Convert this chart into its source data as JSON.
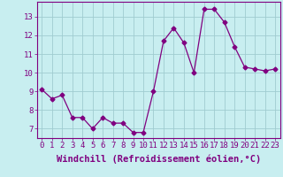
{
  "x": [
    0,
    1,
    2,
    3,
    4,
    5,
    6,
    7,
    8,
    9,
    10,
    11,
    12,
    13,
    14,
    15,
    16,
    17,
    18,
    19,
    20,
    21,
    22,
    23
  ],
  "y": [
    9.1,
    8.6,
    8.8,
    7.6,
    7.6,
    7.0,
    7.6,
    7.3,
    7.3,
    6.8,
    6.8,
    9.0,
    11.7,
    12.4,
    11.6,
    10.0,
    13.4,
    13.4,
    12.7,
    11.4,
    10.3,
    10.2,
    10.1,
    10.2
  ],
  "line_color": "#800080",
  "marker": "D",
  "marker_size": 2.5,
  "bg_color": "#c8eef0",
  "grid_color": "#a0ccd0",
  "xlabel": "Windchill (Refroidissement éolien,°C)",
  "xlabel_fontsize": 7.5,
  "ylabel_ticks": [
    7,
    8,
    9,
    10,
    11,
    12,
    13
  ],
  "xlim": [
    -0.5,
    23.5
  ],
  "ylim": [
    6.5,
    13.8
  ],
  "tick_color": "#800080",
  "tick_fontsize": 6.5,
  "axis_color": "#800080",
  "linewidth": 0.9
}
